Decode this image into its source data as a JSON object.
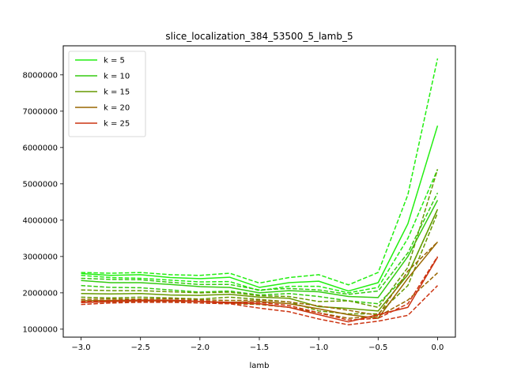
{
  "chart_data": {
    "type": "line",
    "title": "slice_localization_384_53500_5_lamb_5",
    "xlabel": "lamb",
    "ylabel": "",
    "xlim": [
      -3.15,
      0.15
    ],
    "ylim": [
      780000,
      8800000
    ],
    "xticks": [
      -3.0,
      -2.5,
      -2.0,
      -1.5,
      -1.0,
      -0.5,
      0.0
    ],
    "xtick_labels": [
      "−3.0",
      "−2.5",
      "−2.0",
      "−1.5",
      "−1.0",
      "−0.5",
      "0.0"
    ],
    "yticks": [
      1000000,
      2000000,
      3000000,
      4000000,
      5000000,
      6000000,
      7000000,
      8000000
    ],
    "ytick_labels": [
      "1000000",
      "2000000",
      "3000000",
      "4000000",
      "5000000",
      "6000000",
      "7000000",
      "8000000"
    ],
    "legend_position": "upper-left",
    "x": [
      -3.0,
      -2.75,
      -2.5,
      -2.25,
      -2.0,
      -1.75,
      -1.5,
      -1.25,
      -1.0,
      -0.75,
      -0.5,
      -0.25,
      0.0
    ],
    "series": [
      {
        "name": "k = 5",
        "color": "#22ee11",
        "style": "solid",
        "values": [
          2530000,
          2480000,
          2500000,
          2420000,
          2390000,
          2430000,
          2150000,
          2280000,
          2320000,
          2050000,
          2280000,
          3900000,
          6600000
        ]
      },
      {
        "style": "dashed",
        "color": "#22ee11",
        "values": [
          2560000,
          2540000,
          2560000,
          2500000,
          2480000,
          2540000,
          2270000,
          2420000,
          2500000,
          2220000,
          2560000,
          4700000,
          8450000
        ]
      },
      {
        "style": "dashed",
        "color": "#22ee11",
        "values": [
          2480000,
          2420000,
          2400000,
          2350000,
          2300000,
          2310000,
          2060000,
          2180000,
          2180000,
          2000000,
          2150000,
          3500000,
          5400000
        ]
      },
      {
        "name": "k = 10",
        "color": "#33cc11",
        "style": "solid",
        "values": [
          2340000,
          2280000,
          2280000,
          2230000,
          2170000,
          2150000,
          2000000,
          2060000,
          2030000,
          1900000,
          1870000,
          3000000,
          4550000
        ]
      },
      {
        "style": "dashed",
        "color": "#33cc11",
        "values": [
          2400000,
          2370000,
          2360000,
          2290000,
          2230000,
          2230000,
          2080000,
          2120000,
          2080000,
          1960000,
          2050000,
          3100000,
          4750000
        ]
      },
      {
        "style": "dashed",
        "color": "#33cc11",
        "values": [
          2200000,
          2150000,
          2140000,
          2080000,
          2020000,
          2050000,
          1940000,
          1980000,
          1900000,
          1780000,
          1700000,
          2500000,
          4300000
        ]
      },
      {
        "name": "k = 15",
        "color": "#669900",
        "style": "solid",
        "values": [
          1980000,
          1970000,
          1980000,
          1940000,
          1930000,
          1960000,
          1880000,
          1850000,
          1620000,
          1570000,
          1500000,
          2500000,
          4300000
        ]
      },
      {
        "style": "dashed",
        "color": "#669900",
        "values": [
          2080000,
          2060000,
          2060000,
          2030000,
          2000000,
          2020000,
          1920000,
          1900000,
          1760000,
          1780000,
          1600000,
          2700000,
          5400000
        ]
      },
      {
        "style": "dashed",
        "color": "#669900",
        "values": [
          1880000,
          1860000,
          1880000,
          1860000,
          1830000,
          1880000,
          1820000,
          1750000,
          1500000,
          1420000,
          1420000,
          2200000,
          4200000
        ]
      },
      {
        "name": "k = 20",
        "color": "#996600",
        "style": "solid",
        "values": [
          1780000,
          1790000,
          1800000,
          1800000,
          1760000,
          1740000,
          1760000,
          1700000,
          1560000,
          1400000,
          1300000,
          2400000,
          3400000
        ]
      },
      {
        "style": "dashed",
        "color": "#996600",
        "values": [
          1820000,
          1830000,
          1830000,
          1840000,
          1810000,
          1790000,
          1800000,
          1750000,
          1640000,
          1520000,
          1380000,
          2600000,
          3400000
        ]
      },
      {
        "style": "dashed",
        "color": "#996600",
        "values": [
          1740000,
          1750000,
          1760000,
          1760000,
          1720000,
          1700000,
          1680000,
          1600000,
          1450000,
          1300000,
          1350000,
          1800000,
          2550000
        ]
      },
      {
        "name": "k = 25",
        "color": "#cc3311",
        "style": "solid",
        "values": [
          1730000,
          1760000,
          1780000,
          1780000,
          1760000,
          1720000,
          1700000,
          1600000,
          1400000,
          1200000,
          1400000,
          1600000,
          2980000
        ]
      },
      {
        "style": "dashed",
        "color": "#cc3311",
        "values": [
          1760000,
          1780000,
          1800000,
          1800000,
          1780000,
          1740000,
          1740000,
          1650000,
          1450000,
          1250000,
          1300000,
          1700000,
          3000000
        ]
      },
      {
        "style": "dashed",
        "color": "#cc3311",
        "values": [
          1680000,
          1720000,
          1740000,
          1740000,
          1720000,
          1700000,
          1580000,
          1480000,
          1280000,
          1120000,
          1220000,
          1380000,
          2200000
        ]
      }
    ]
  }
}
